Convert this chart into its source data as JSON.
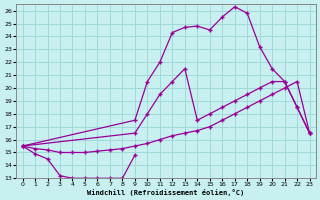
{
  "background_color": "#c8f0f0",
  "grid_color": "#a0d8d8",
  "line_color": "#990099",
  "marker": "+",
  "xlabel": "Windchill (Refroidissement éolien,°C)",
  "xlim_min": -0.5,
  "xlim_max": 23.5,
  "ylim_min": 13.0,
  "ylim_max": 26.5,
  "yticks": [
    13,
    14,
    15,
    16,
    17,
    18,
    19,
    20,
    21,
    22,
    23,
    24,
    25,
    26
  ],
  "xticks": [
    0,
    1,
    2,
    3,
    4,
    5,
    6,
    7,
    8,
    9,
    10,
    11,
    12,
    13,
    14,
    15,
    16,
    17,
    18,
    19,
    20,
    21,
    22,
    23
  ],
  "line1_x": [
    0,
    1,
    2,
    3,
    4,
    5,
    6,
    7,
    8,
    9
  ],
  "line1_y": [
    15.5,
    14.9,
    14.5,
    13.2,
    13.0,
    13.0,
    13.0,
    13.0,
    13.0,
    14.8
  ],
  "line2_x": [
    0,
    1,
    2,
    3,
    4,
    5,
    6,
    7,
    8,
    9,
    10,
    11,
    12,
    13,
    14,
    15,
    16,
    17,
    18,
    19,
    20,
    21,
    22,
    23
  ],
  "line2_y": [
    15.5,
    15.3,
    15.2,
    15.0,
    15.0,
    15.0,
    15.1,
    15.2,
    15.3,
    15.5,
    15.7,
    16.0,
    16.3,
    16.5,
    16.7,
    17.0,
    17.5,
    18.0,
    18.5,
    19.0,
    19.5,
    20.0,
    20.5,
    16.5
  ],
  "line3_x": [
    0,
    9,
    10,
    11,
    12,
    13,
    14,
    15,
    16,
    17,
    18,
    19,
    20,
    21,
    22,
    23
  ],
  "line3_y": [
    15.5,
    16.5,
    18.0,
    19.5,
    20.5,
    21.5,
    17.5,
    18.0,
    18.5,
    19.0,
    19.5,
    20.0,
    20.5,
    20.5,
    18.5,
    16.5
  ],
  "line4_x": [
    0,
    9,
    10,
    11,
    12,
    13,
    14,
    15,
    16,
    17,
    18,
    19,
    20,
    21,
    22,
    23
  ],
  "line4_y": [
    15.5,
    17.5,
    20.5,
    22.0,
    24.3,
    24.7,
    24.8,
    24.5,
    25.5,
    26.3,
    25.8,
    23.2,
    21.5,
    20.5,
    18.5,
    16.5
  ]
}
